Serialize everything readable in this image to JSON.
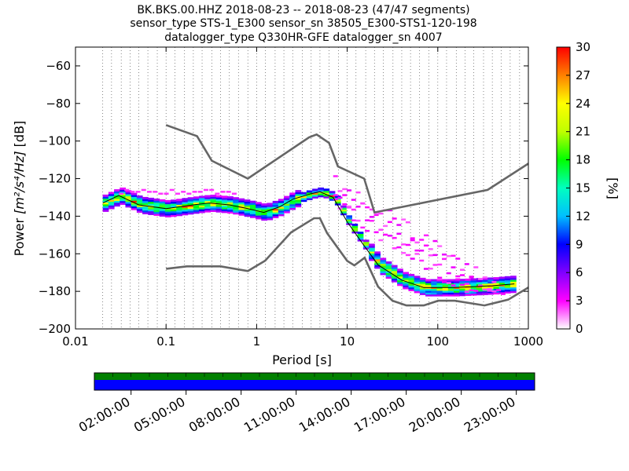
{
  "chart_data": {
    "type": "heatmap",
    "title_lines": [
      "BK.BKS.00.HHZ   2018-08-23 -- 2018-08-23  (47/47 segments)",
      "sensor_type STS-1_E300 sensor_sn 38505_E300-STS1-120-198",
      "datalogger_type Q330HR-GFE datalogger_sn 4007"
    ],
    "xlabel": "Period [s]",
    "ylabel_prefix": "Power",
    "ylabel_units": "[m²/s⁴/Hz]",
    "ylabel_suffix": "[dB]",
    "xscale": "log",
    "xlim": [
      0.01,
      1000
    ],
    "ylim": [
      -200,
      -50
    ],
    "xticks": [
      0.01,
      0.1,
      1,
      10,
      100,
      1000
    ],
    "xtick_labels": [
      "0.01",
      "0.1",
      "1",
      "10",
      "100",
      "1000"
    ],
    "yticks": [
      -60,
      -80,
      -100,
      -120,
      -140,
      -160,
      -180,
      -200
    ],
    "ytick_labels": [
      "−60",
      "−80",
      "−100",
      "−120",
      "−140",
      "−160",
      "−180",
      "−200"
    ],
    "grid": "dotted vertical lines at period bins",
    "colorbar": {
      "label": "[%]",
      "ticks": [
        0,
        3,
        6,
        9,
        12,
        15,
        18,
        21,
        24,
        27,
        30
      ],
      "range": [
        0,
        30
      ],
      "colormap": [
        "#ffffff",
        "#ff00ff",
        "#8000ff",
        "#0000ff",
        "#00bfff",
        "#00ffbf",
        "#00ff00",
        "#bfff00",
        "#ffff00",
        "#ff8000",
        "#ff0000"
      ]
    },
    "noise_models": [
      {
        "name": "high",
        "color": "#666666",
        "points": [
          [
            0.1,
            -91.5
          ],
          [
            0.22,
            -97.4
          ],
          [
            0.32,
            -110.5
          ],
          [
            0.8,
            -120
          ],
          [
            3.8,
            -98
          ],
          [
            4.6,
            -96.5
          ],
          [
            6.3,
            -101
          ],
          [
            7.9,
            -113.5
          ],
          [
            15.4,
            -120
          ],
          [
            20,
            -138
          ],
          [
            354.8,
            -126
          ],
          [
            1000,
            -112
          ]
        ]
      },
      {
        "name": "low",
        "color": "#666666",
        "points": [
          [
            0.1,
            -168
          ],
          [
            0.17,
            -166.7
          ],
          [
            0.4,
            -166.7
          ],
          [
            0.8,
            -169.2
          ],
          [
            1.24,
            -163.7
          ],
          [
            2.4,
            -148.6
          ],
          [
            4.3,
            -141.1
          ],
          [
            5,
            -141.1
          ],
          [
            6,
            -149
          ],
          [
            10,
            -163.8
          ],
          [
            12,
            -166.2
          ],
          [
            15.6,
            -162.1
          ],
          [
            21.9,
            -177.5
          ],
          [
            31.6,
            -185
          ],
          [
            45,
            -187.5
          ],
          [
            70,
            -187.5
          ],
          [
            101,
            -185
          ],
          [
            154,
            -185
          ],
          [
            328,
            -187.5
          ],
          [
            600,
            -184.4
          ],
          [
            1000,
            -178
          ]
        ]
      }
    ],
    "mean_curve": [
      [
        0.02,
        -133
      ],
      [
        0.03,
        -129
      ],
      [
        0.05,
        -134
      ],
      [
        0.1,
        -136
      ],
      [
        0.2,
        -134
      ],
      [
        0.3,
        -133
      ],
      [
        0.5,
        -134
      ],
      [
        0.8,
        -136
      ],
      [
        1.2,
        -138
      ],
      [
        1.8,
        -135
      ],
      [
        2.5,
        -131
      ],
      [
        4,
        -128
      ],
      [
        5,
        -127
      ],
      [
        7,
        -130
      ],
      [
        10,
        -143
      ],
      [
        15,
        -155
      ],
      [
        22,
        -166
      ],
      [
        40,
        -174
      ],
      [
        70,
        -178
      ],
      [
        150,
        -178
      ],
      [
        400,
        -177
      ],
      [
        700,
        -176
      ]
    ],
    "scatter_bands": [
      {
        "pmin": 0.03,
        "pmax": 0.6,
        "ycenter": -128,
        "spread": 2,
        "density": "low"
      },
      {
        "pmin": 7,
        "pmax": 100,
        "ycenter": "upper-diagonal",
        "density": "low"
      }
    ]
  },
  "timeline": {
    "tick_labels": [
      "02:00:00",
      "05:00:00",
      "08:00:00",
      "11:00:00",
      "14:00:00",
      "17:00:00",
      "20:00:00",
      "23:00:00"
    ],
    "top_color": "#008000",
    "bottom_color": "#0000ff"
  }
}
